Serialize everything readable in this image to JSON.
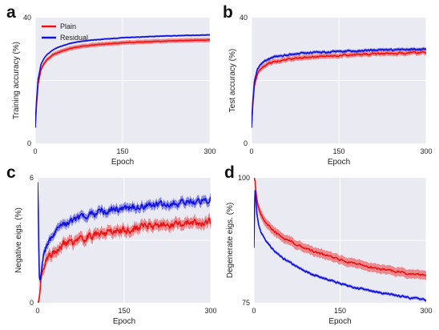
{
  "colors": {
    "plain": "#ee1111",
    "residual": "#1111dd",
    "panel_bg": "#eaeaf2",
    "grid": "#ffffff",
    "band_alpha": 0.45
  },
  "chart_data": [
    {
      "type": "line",
      "panel_letter": "a",
      "xlabel": "Epoch",
      "ylabel": "Training accuracy (%)",
      "xlim": [
        0,
        300
      ],
      "ylim": [
        0,
        40
      ],
      "xticks": [
        0,
        150,
        300
      ],
      "yticks": [
        0,
        40
      ],
      "grid": true,
      "legend": {
        "placement": "top-left",
        "entries": [
          "Plain",
          "Residual"
        ]
      },
      "series": [
        {
          "name": "Plain",
          "color_key": "plain",
          "noise": 0.12,
          "band": 0.7,
          "x": [
            0,
            2,
            5,
            10,
            15,
            20,
            30,
            40,
            60,
            80,
            100,
            150,
            200,
            250,
            300
          ],
          "y": [
            5,
            12,
            19,
            23.5,
            25.4,
            26.6,
            28.1,
            29.0,
            30.2,
            30.9,
            31.3,
            32.0,
            32.4,
            32.7,
            32.9
          ]
        },
        {
          "name": "Residual",
          "color_key": "residual",
          "noise": 0.1,
          "band": 0.3,
          "x": [
            0,
            2,
            5,
            10,
            15,
            20,
            30,
            40,
            60,
            80,
            100,
            150,
            200,
            250,
            300
          ],
          "y": [
            5,
            13,
            20.5,
            25.2,
            27.0,
            28.2,
            29.7,
            30.6,
            31.8,
            32.5,
            32.9,
            33.6,
            34.0,
            34.3,
            34.5
          ]
        }
      ]
    },
    {
      "type": "line",
      "panel_letter": "b",
      "xlabel": "Epoch",
      "ylabel": "Test accuracy (%)",
      "xlim": [
        0,
        300
      ],
      "ylim": [
        0,
        40
      ],
      "xticks": [
        0,
        150,
        300
      ],
      "yticks": [
        0,
        40
      ],
      "grid": true,
      "series": [
        {
          "name": "Plain",
          "color_key": "plain",
          "noise": 0.45,
          "band": 0.8,
          "x": [
            0,
            2,
            5,
            10,
            15,
            20,
            30,
            40,
            60,
            80,
            100,
            150,
            200,
            250,
            300
          ],
          "y": [
            5,
            12,
            18.5,
            22,
            23.5,
            24.4,
            25.4,
            26.0,
            26.7,
            27.1,
            27.4,
            28.0,
            28.4,
            28.7,
            29.0
          ]
        },
        {
          "name": "Residual",
          "color_key": "residual",
          "noise": 0.4,
          "band": 0.5,
          "x": [
            0,
            2,
            5,
            10,
            15,
            20,
            30,
            40,
            60,
            80,
            100,
            150,
            200,
            250,
            300
          ],
          "y": [
            5,
            13,
            19.8,
            23.5,
            25.0,
            25.9,
            26.9,
            27.5,
            28.1,
            28.5,
            28.8,
            29.3,
            29.6,
            29.8,
            30.0
          ]
        }
      ]
    },
    {
      "type": "line",
      "panel_letter": "c",
      "xlabel": "Epoch",
      "ylabel": "Negative eigs. (%)",
      "xlim": [
        0,
        300
      ],
      "ylim": [
        0,
        6
      ],
      "xticks": [
        0,
        150,
        300
      ],
      "yticks": [
        0,
        6
      ],
      "grid": true,
      "series": [
        {
          "name": "Plain",
          "color_key": "plain",
          "noise": 0.3,
          "band": 0.25,
          "x": [
            0,
            2,
            4,
            6,
            10,
            15,
            20,
            30,
            50,
            75,
            100,
            150,
            200,
            250,
            300
          ],
          "y": [
            0,
            0.1,
            0.6,
            1.2,
            1.75,
            2.05,
            2.25,
            2.55,
            2.85,
            3.05,
            3.25,
            3.5,
            3.7,
            3.8,
            3.9
          ]
        },
        {
          "name": "Residual",
          "color_key": "residual",
          "noise": 0.28,
          "band": 0.2,
          "x": [
            0,
            1,
            2,
            3,
            4,
            6,
            10,
            15,
            20,
            30,
            50,
            75,
            100,
            150,
            200,
            250,
            300
          ],
          "y": [
            5.8,
            4.6,
            2.6,
            1.2,
            1.05,
            1.4,
            2.3,
            2.7,
            3.0,
            3.4,
            3.8,
            4.1,
            4.3,
            4.55,
            4.7,
            4.85,
            4.95
          ]
        }
      ]
    },
    {
      "type": "line",
      "panel_letter": "d",
      "xlabel": "Epoch",
      "ylabel": "Degenerate eigs. (%)",
      "xlim": [
        0,
        300
      ],
      "ylim": [
        75,
        100
      ],
      "xticks": [
        0,
        150,
        300
      ],
      "yticks": [
        75,
        100
      ],
      "grid": true,
      "series": [
        {
          "name": "Plain",
          "color_key": "plain",
          "noise": 0.35,
          "band": 0.9,
          "x": [
            0,
            2,
            4,
            6,
            10,
            15,
            20,
            30,
            50,
            75,
            100,
            150,
            200,
            250,
            300
          ],
          "y": [
            100,
            99.3,
            96.5,
            94.8,
            93.3,
            92.0,
            91.2,
            89.8,
            88.0,
            86.6,
            85.4,
            83.6,
            82.2,
            81.2,
            80.4
          ]
        },
        {
          "name": "Residual",
          "color_key": "residual",
          "noise": 0.3,
          "band": 0.3,
          "x": [
            0,
            1,
            2,
            3,
            5,
            8,
            12,
            20,
            30,
            50,
            75,
            100,
            150,
            200,
            250,
            300
          ],
          "y": [
            86,
            94,
            97.5,
            96.5,
            93.0,
            90.8,
            89.2,
            87.5,
            86.0,
            84.0,
            82.2,
            80.8,
            78.8,
            77.4,
            76.4,
            75.6
          ]
        }
      ]
    }
  ]
}
